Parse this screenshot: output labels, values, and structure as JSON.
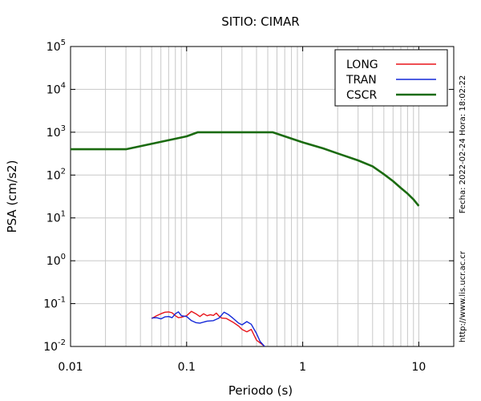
{
  "chart_data": {
    "type": "line",
    "title": "SITIO: CIMAR",
    "xlabel": "Periodo (s)",
    "ylabel": "PSA (cm/s2)",
    "x_scale": "log",
    "y_scale": "log",
    "xlim": [
      0.01,
      20
    ],
    "ylim": [
      0.01,
      100000
    ],
    "grid": true,
    "legend_position": "top-right",
    "x_ticks": [
      {
        "value": 0.01,
        "label": "0.01"
      },
      {
        "value": 0.1,
        "label": "0.1"
      },
      {
        "value": 1,
        "label": "1"
      },
      {
        "value": 10,
        "label": "10"
      }
    ],
    "y_ticks": [
      {
        "value": 0.01,
        "base": "10",
        "exp": "-2"
      },
      {
        "value": 0.1,
        "base": "10",
        "exp": "-1"
      },
      {
        "value": 1,
        "base": "10",
        "exp": "0"
      },
      {
        "value": 10,
        "base": "10",
        "exp": "1"
      },
      {
        "value": 100,
        "base": "10",
        "exp": "2"
      },
      {
        "value": 1000,
        "base": "10",
        "exp": "3"
      },
      {
        "value": 10000,
        "base": "10",
        "exp": "4"
      },
      {
        "value": 100000,
        "base": "10",
        "exp": "5"
      }
    ],
    "side_notes": {
      "date": "Fecha: 2022-02-24 Hora: 18:02:22",
      "url": "http://www.lis.ucr.ac.cr"
    },
    "series": [
      {
        "name": "LONG",
        "color": "#e8141a",
        "points": [
          [
            0.05,
            0.045
          ],
          [
            0.055,
            0.052
          ],
          [
            0.06,
            0.058
          ],
          [
            0.065,
            0.063
          ],
          [
            0.07,
            0.064
          ],
          [
            0.075,
            0.061
          ],
          [
            0.08,
            0.052
          ],
          [
            0.085,
            0.047
          ],
          [
            0.09,
            0.048
          ],
          [
            0.1,
            0.052
          ],
          [
            0.11,
            0.066
          ],
          [
            0.12,
            0.058
          ],
          [
            0.13,
            0.05
          ],
          [
            0.14,
            0.058
          ],
          [
            0.15,
            0.052
          ],
          [
            0.16,
            0.055
          ],
          [
            0.17,
            0.053
          ],
          [
            0.18,
            0.06
          ],
          [
            0.19,
            0.051
          ],
          [
            0.2,
            0.046
          ],
          [
            0.22,
            0.045
          ],
          [
            0.25,
            0.037
          ],
          [
            0.28,
            0.03
          ],
          [
            0.3,
            0.025
          ],
          [
            0.33,
            0.022
          ],
          [
            0.36,
            0.025
          ],
          [
            0.4,
            0.014
          ],
          [
            0.45,
            0.011
          ],
          [
            0.47,
            0.01
          ]
        ]
      },
      {
        "name": "TRAN",
        "color": "#1428d8",
        "points": [
          [
            0.05,
            0.046
          ],
          [
            0.055,
            0.047
          ],
          [
            0.06,
            0.044
          ],
          [
            0.065,
            0.049
          ],
          [
            0.07,
            0.05
          ],
          [
            0.075,
            0.047
          ],
          [
            0.08,
            0.058
          ],
          [
            0.085,
            0.064
          ],
          [
            0.09,
            0.052
          ],
          [
            0.1,
            0.05
          ],
          [
            0.11,
            0.04
          ],
          [
            0.12,
            0.036
          ],
          [
            0.13,
            0.035
          ],
          [
            0.15,
            0.039
          ],
          [
            0.17,
            0.04
          ],
          [
            0.19,
            0.046
          ],
          [
            0.21,
            0.063
          ],
          [
            0.23,
            0.055
          ],
          [
            0.25,
            0.046
          ],
          [
            0.28,
            0.035
          ],
          [
            0.3,
            0.032
          ],
          [
            0.33,
            0.038
          ],
          [
            0.36,
            0.033
          ],
          [
            0.4,
            0.02
          ],
          [
            0.43,
            0.013
          ],
          [
            0.47,
            0.01
          ]
        ]
      },
      {
        "name": "CSCR",
        "color": "#1b6b10",
        "points": [
          [
            0.01,
            400
          ],
          [
            0.03,
            400
          ],
          [
            0.1,
            800
          ],
          [
            0.125,
            1000
          ],
          [
            0.55,
            1000
          ],
          [
            0.7,
            800
          ],
          [
            1,
            580
          ],
          [
            1.5,
            420
          ],
          [
            2,
            320
          ],
          [
            3,
            220
          ],
          [
            4,
            160
          ],
          [
            5,
            105
          ],
          [
            6,
            72
          ],
          [
            7,
            50
          ],
          [
            8,
            37
          ],
          [
            9,
            27
          ],
          [
            10,
            19
          ]
        ]
      }
    ]
  }
}
